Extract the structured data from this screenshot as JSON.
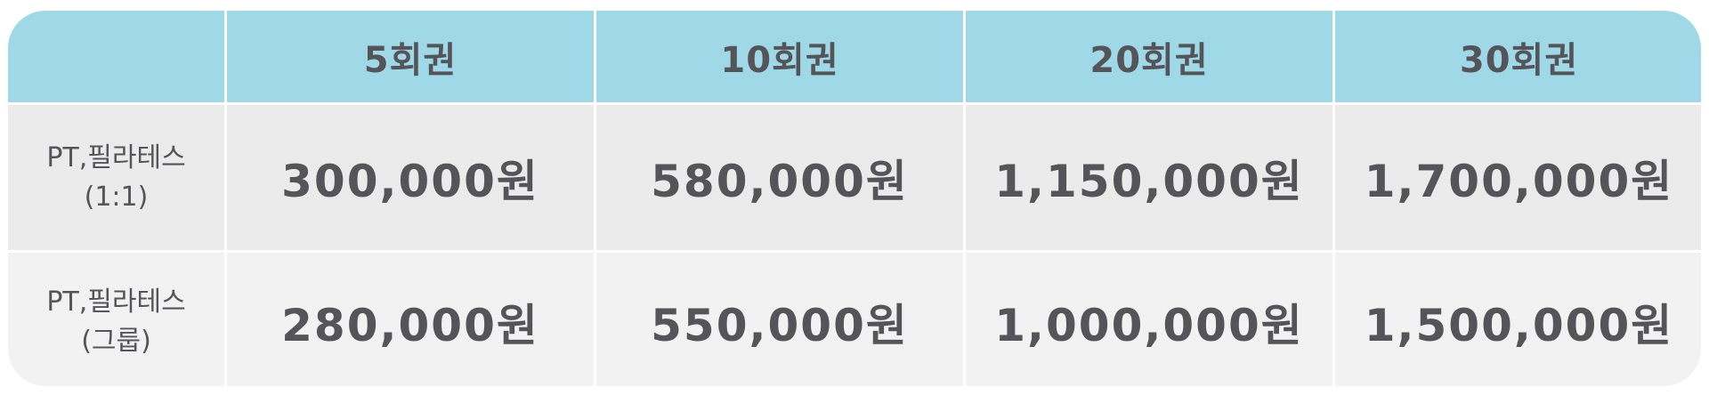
{
  "table": {
    "corner": "",
    "columns": [
      "5회권",
      "10회권",
      "20회권",
      "30회권"
    ],
    "rows": [
      {
        "label_line1": "PT,필라테스",
        "label_line2": "(1:1)",
        "prices": [
          "300,000원",
          "580,000원",
          "1,150,000원",
          "1,700,000원"
        ]
      },
      {
        "label_line1": "PT,필라테스",
        "label_line2": "(그룹)",
        "prices": [
          "280,000원",
          "550,000원",
          "1,000,000원",
          "1,500,000원"
        ]
      }
    ]
  },
  "colors": {
    "header_background": "#9fd9e8",
    "row1_background": "#ebebeb",
    "row2_background": "#f2f2f2",
    "text": "#555559"
  }
}
